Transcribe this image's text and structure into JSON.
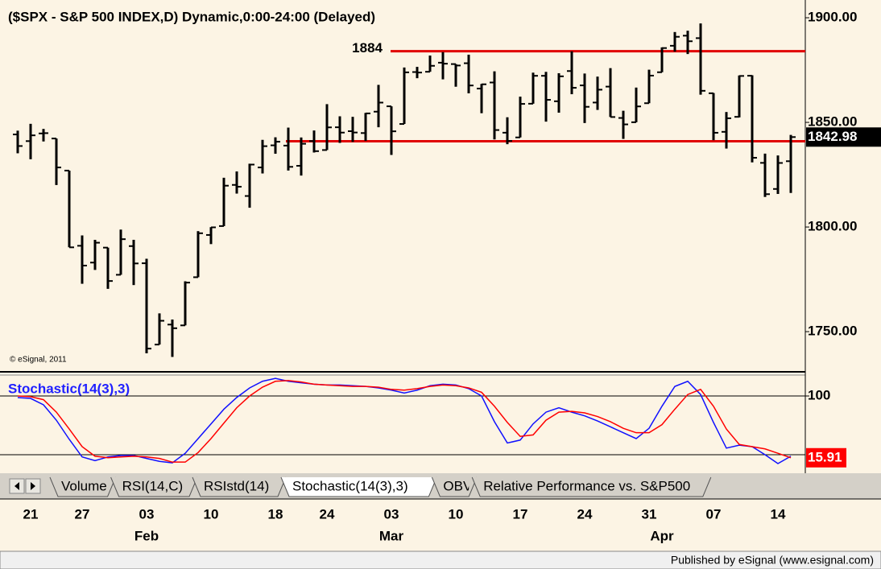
{
  "chart_data": [
    {
      "type": "ohlc",
      "title": "($SPX - S&P 500 INDEX,D) Dynamic,0:00-24:00 (Delayed)",
      "credit": "© eSignal, 2011",
      "categories": [
        null,
        "21",
        null,
        null,
        null,
        "27",
        null,
        null,
        null,
        null,
        "03",
        null,
        null,
        null,
        null,
        "10",
        null,
        null,
        null,
        null,
        "18",
        null,
        null,
        null,
        "24",
        null,
        null,
        null,
        null,
        "03",
        null,
        null,
        null,
        null,
        "10",
        null,
        null,
        null,
        null,
        "17",
        null,
        null,
        null,
        null,
        "24",
        null,
        null,
        null,
        null,
        "31",
        null,
        null,
        null,
        null,
        "07",
        null,
        null,
        null,
        null,
        "14",
        null
      ],
      "month_categories": [
        null,
        null,
        null,
        null,
        null,
        null,
        null,
        null,
        null,
        null,
        "Feb",
        null,
        null,
        null,
        null,
        null,
        null,
        null,
        null,
        null,
        null,
        null,
        null,
        null,
        null,
        null,
        null,
        null,
        null,
        "Mar",
        null,
        null,
        null,
        null,
        null,
        null,
        null,
        null,
        null,
        null,
        null,
        null,
        null,
        null,
        null,
        null,
        null,
        null,
        null,
        null,
        "Apr",
        null,
        null,
        null,
        null,
        null,
        null,
        null,
        null,
        null,
        null
      ],
      "open": [
        1844.23,
        1841.05,
        1844.71,
        1842.29,
        1826.96,
        1791.03,
        1783.0,
        1790.15,
        1777.17,
        1790.88,
        1782.68,
        1743.82,
        1753.38,
        1752.99,
        1776.01,
        1796.2,
        1800.45,
        1820.12,
        1814.82,
        1828.46,
        1839.03,
        1838.9,
        1829.24,
        1841.07,
        1836.78,
        1847.66,
        1845.79,
        1844.9,
        1855.12,
        1857.68,
        1849.23,
        1874.05,
        1874.18,
        1878.52,
        1877.86,
        1878.26,
        1866.15,
        1869.06,
        1845.07,
        1842.81,
        1858.92,
        1872.25,
        1860.09,
        1874.53,
        1867.67,
        1859.48,
        1867.09,
        1852.11,
        1850.07,
        1859.16,
        1873.96,
        1886.61,
        1891.43,
        1890.25,
        1863.92,
        1845.48,
        1852.64,
        1872.28,
        1830.65,
        1818.18,
        1831.45
      ],
      "high": [
        1846.04,
        1849.31,
        1846.87,
        1842.29,
        1826.96,
        1795.98,
        1793.87,
        1790.15,
        1798.77,
        1793.88,
        1784.83,
        1758.73,
        1755.79,
        1774.06,
        1798.03,
        1799.94,
        1823.54,
        1826.55,
        1830.25,
        1841.65,
        1842.87,
        1847.5,
        1842.79,
        1846.13,
        1858.71,
        1852.91,
        1852.65,
        1854.53,
        1867.92,
        1857.68,
        1876.23,
        1876.53,
        1881.94,
        1883.57,
        1877.87,
        1882.35,
        1868.38,
        1874.4,
        1852.44,
        1862.3,
        1873.76,
        1874.14,
        1873.49,
        1883.97,
        1873.34,
        1871.87,
        1875.92,
        1855.55,
        1866.63,
        1875.18,
        1885.84,
        1893.17,
        1893.8,
        1897.28,
        1864.04,
        1854.95,
        1872.43,
        1872.53,
        1835.07,
        1834.19,
        1844.02
      ],
      "low": [
        1835.23,
        1832.38,
        1840.88,
        1820.06,
        1790.29,
        1772.88,
        1779.49,
        1770.45,
        1777.17,
        1772.26,
        1739.66,
        1743.82,
        1737.92,
        1752.99,
        1776.01,
        1791.83,
        1800.41,
        1815.97,
        1809.22,
        1825.59,
        1835.01,
        1826.99,
        1824.58,
        1835.6,
        1836.78,
        1840.19,
        1840.66,
        1841.13,
        1847.67,
        1834.44,
        1849.23,
        1871.11,
        1874.18,
        1870.56,
        1867.04,
        1863.88,
        1854.38,
        1841.86,
        1839.57,
        1842.81,
        1858.92,
        1850.35,
        1854.63,
        1863.46,
        1849.69,
        1855.96,
        1852.56,
        1842.11,
        1850.07,
        1859.16,
        1873.96,
        1883.79,
        1882.65,
        1863.26,
        1841.48,
        1837.49,
        1852.38,
        1830.87,
        1814.36,
        1815.8,
        1816.29
      ],
      "close": [
        1838.7,
        1843.8,
        1844.86,
        1828.46,
        1790.29,
        1781.56,
        1792.5,
        1774.2,
        1794.19,
        1782.59,
        1741.89,
        1755.2,
        1751.64,
        1773.43,
        1797.02,
        1799.84,
        1819.75,
        1819.26,
        1829.83,
        1838.63,
        1840.76,
        1828.75,
        1839.78,
        1836.25,
        1847.61,
        1845.12,
        1845.16,
        1854.29,
        1859.45,
        1845.73,
        1873.91,
        1873.81,
        1877.03,
        1878.04,
        1877.17,
        1867.63,
        1868.2,
        1846.34,
        1841.13,
        1858.83,
        1872.25,
        1860.77,
        1872.01,
        1866.52,
        1857.44,
        1865.62,
        1852.56,
        1849.04,
        1857.62,
        1872.34,
        1885.52,
        1890.9,
        1888.77,
        1865.09,
        1845.04,
        1851.96,
        1872.18,
        1833.08,
        1815.69,
        1830.61,
        1842.98
      ],
      "color": "#000000",
      "last_value": {
        "value": 1842.98,
        "label": "1842.98"
      },
      "hlines": [
        1884,
        1841
      ],
      "hline_color": "#e00000",
      "ylim": [
        1730.8,
        1905.4
      ],
      "yticks": [
        {
          "value": 1750,
          "label": "1750.00"
        },
        {
          "value": 1800,
          "label": "1800.00"
        },
        {
          "value": 1850,
          "label": "1850.00"
        },
        {
          "value": 1900,
          "label": "1900.00"
        }
      ]
    },
    {
      "type": "line",
      "title": "Stochastic(14(3),3)",
      "series": [
        {
          "color": "#1010ff",
          "values": [
            97.8,
            96.7,
            88,
            67,
            41,
            17,
            12,
            17,
            19,
            19,
            15,
            11,
            9,
            22,
            42,
            62,
            82,
            98,
            111,
            120,
            124,
            120,
            118,
            116,
            115,
            115,
            114,
            113,
            111,
            108,
            104,
            108,
            114,
            116,
            115,
            110,
            100,
            65,
            36,
            40,
            62,
            78,
            84,
            78,
            73,
            66,
            58,
            50,
            42,
            56,
            86,
            113,
            120,
            102,
            64,
            29,
            33,
            31,
            20,
            8,
            18
          ]
        },
        {
          "color": "#ff0000",
          "values": [
            100,
            99,
            95,
            78,
            55,
            31,
            18,
            16,
            17,
            18,
            17,
            15,
            10,
            10,
            23,
            42,
            63,
            84,
            100,
            112,
            120,
            121,
            119,
            116,
            115,
            114,
            113,
            113,
            112,
            109,
            108,
            110,
            113,
            115,
            114,
            111,
            105,
            86,
            64,
            45,
            47,
            67,
            78,
            79,
            77,
            72,
            65,
            56,
            50,
            50,
            61,
            82,
            102,
            109,
            86,
            55,
            34,
            31,
            28,
            22,
            15.91
          ],
          "value_labels": [
            null,
            null,
            null,
            null,
            null,
            null,
            null,
            null,
            null,
            null,
            null,
            null,
            null,
            null,
            null,
            null,
            null,
            null,
            null,
            null,
            null,
            null,
            null,
            null,
            null,
            null,
            null,
            null,
            null,
            null,
            null,
            null,
            null,
            null,
            null,
            null,
            null,
            null,
            null,
            null,
            null,
            null,
            null,
            null,
            null,
            null,
            null,
            null,
            null,
            null,
            null,
            null,
            null,
            null,
            null,
            null,
            null,
            null,
            null,
            null,
            "15.91"
          ]
        }
      ],
      "hlines": [
        100,
        20
      ],
      "ylim": [
        5.8,
        129.6
      ],
      "yticks": [
        100
      ]
    }
  ],
  "tabs": [
    "Volume",
    "RSI(14,C)",
    "RSIstd(14)",
    "Stochastic(14(3),3)",
    "OBV",
    "Relative Performance vs. S&P500"
  ],
  "footer": "Published by eSignal (www.esignal.com)"
}
